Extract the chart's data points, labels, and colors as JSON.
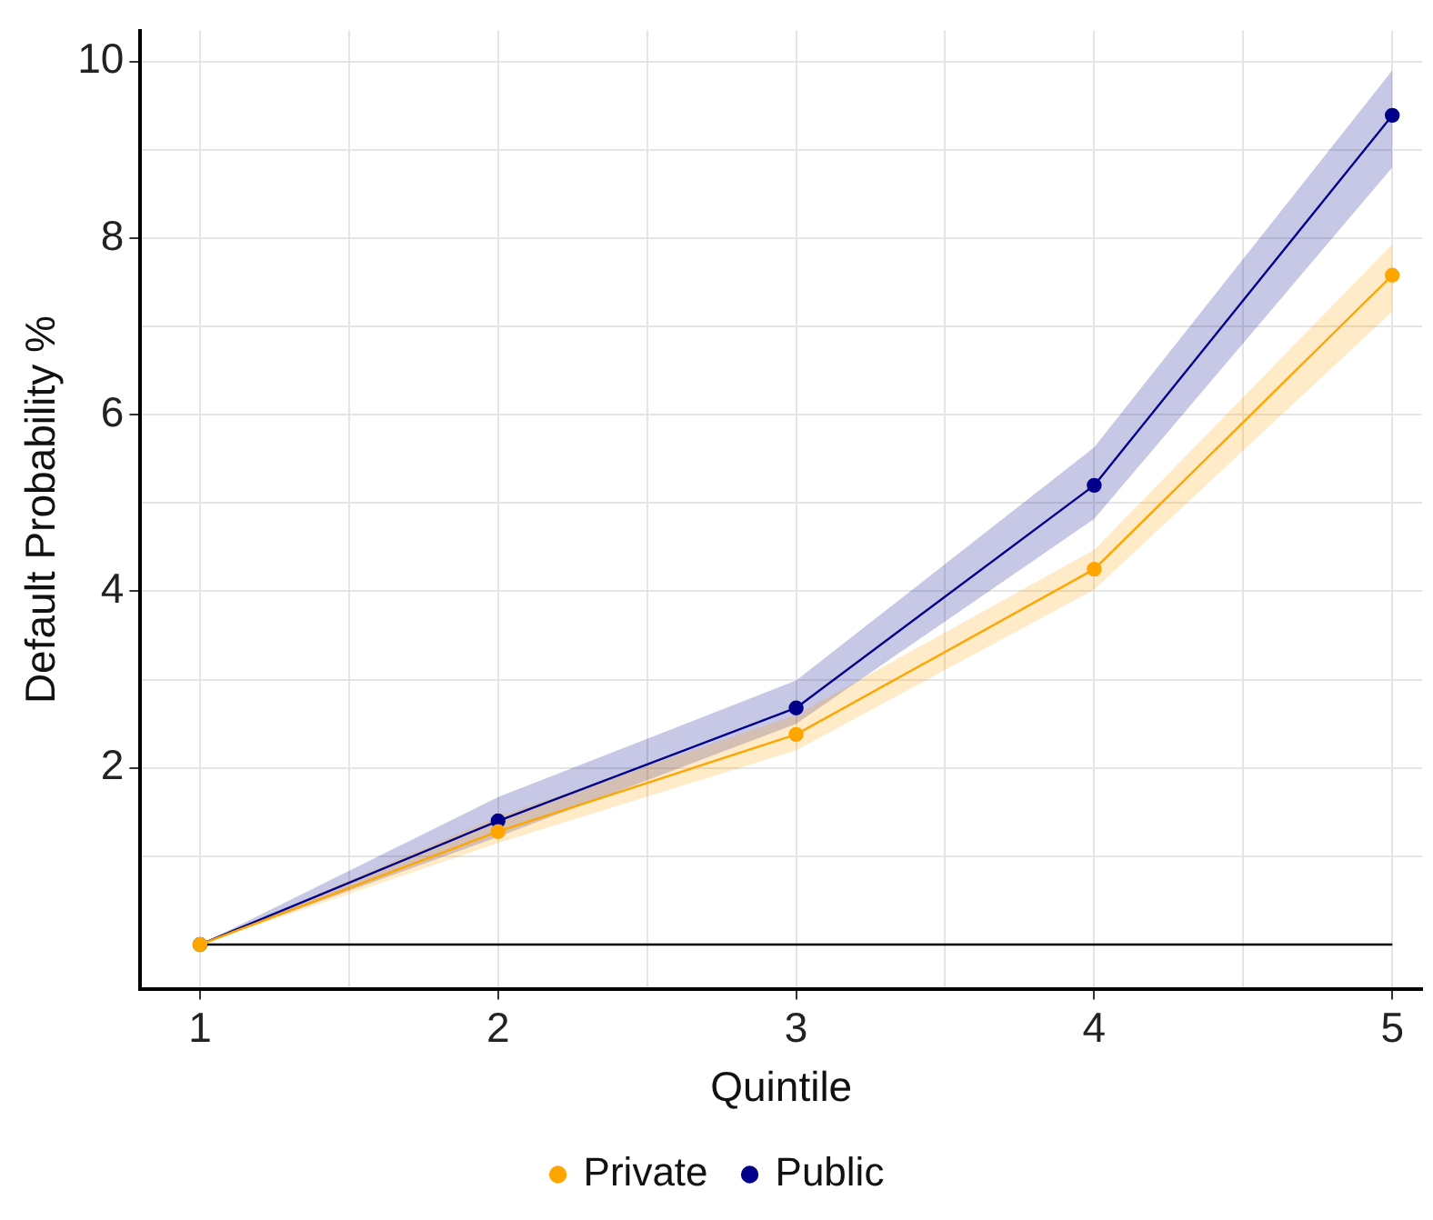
{
  "chart_data": {
    "type": "line",
    "xlabel": "Quintile",
    "ylabel": "Default Probability %",
    "x": [
      1,
      2,
      3,
      4,
      5
    ],
    "series": [
      {
        "name": "Private",
        "color": "#ffa500",
        "values": [
          0,
          1.28,
          2.38,
          4.25,
          7.58
        ],
        "lower": [
          0,
          1.15,
          2.2,
          4.02,
          7.17
        ],
        "upper": [
          0,
          1.45,
          2.6,
          4.47,
          7.93
        ]
      },
      {
        "name": "Public",
        "color": "#00008b",
        "values": [
          0,
          1.4,
          2.68,
          5.2,
          9.39
        ],
        "lower": [
          0,
          1.22,
          2.5,
          4.82,
          8.8
        ],
        "upper": [
          0,
          1.67,
          2.99,
          5.63,
          9.9
        ]
      }
    ],
    "xlim": [
      0.8,
      5.1
    ],
    "xticks": [
      1,
      {
        "value": 1.5,
        "label": null
      },
      2,
      {
        "value": 2.5,
        "label": null
      },
      3,
      {
        "value": 3.5,
        "label": null
      },
      4,
      {
        "value": 4.5,
        "label": null
      },
      5
    ],
    "ylim": [
      -0.5,
      10.35
    ],
    "yticks": [
      {
        "value": 1,
        "label": null
      },
      2,
      {
        "value": 3,
        "label": null
      },
      4,
      {
        "value": 5,
        "label": null
      },
      6,
      {
        "value": 7,
        "label": null
      },
      8,
      {
        "value": 9,
        "label": null
      },
      10
    ],
    "ref_lines": [
      {
        "axis": "y",
        "value": 0,
        "color": "#000000"
      }
    ],
    "grid": true,
    "legend": "bottom",
    "marker": "circle",
    "line_style": "solid"
  }
}
